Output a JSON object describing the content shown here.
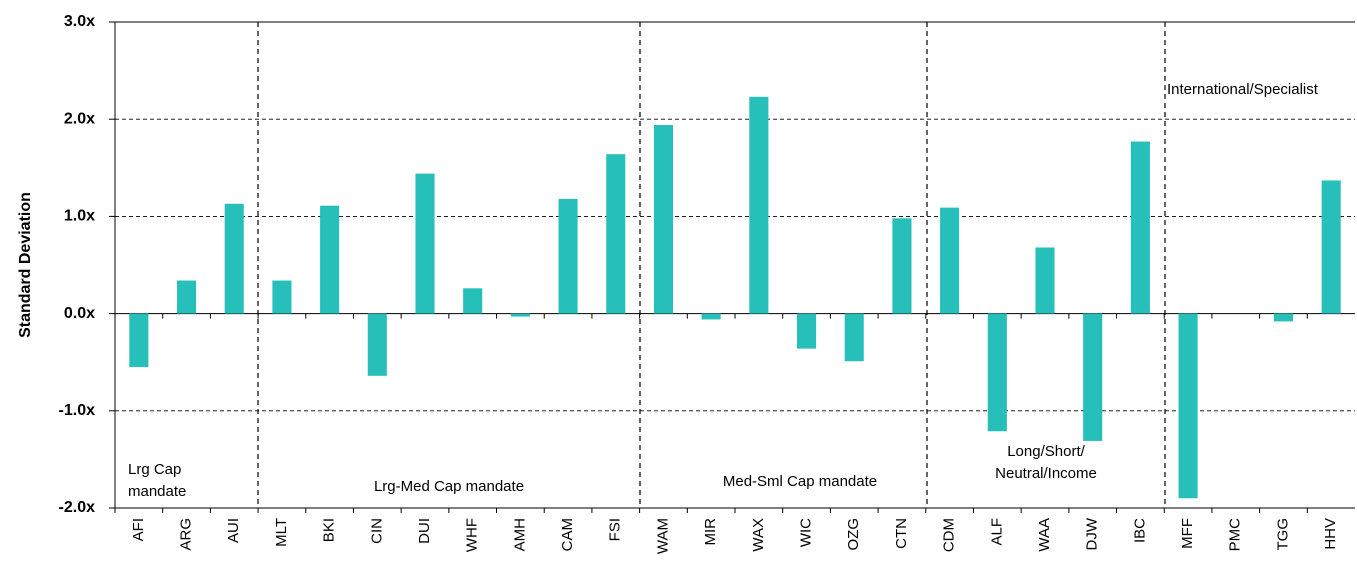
{
  "chart_data": {
    "type": "bar",
    "y_label": "Standard Deviation",
    "categories": [
      "AFI",
      "ARG",
      "AUI",
      "MLT",
      "BKI",
      "CIN",
      "DUI",
      "WHF",
      "AMH",
      "CAM",
      "FSI",
      "WAM",
      "MIR",
      "WAX",
      "WIC",
      "OZG",
      "CTN",
      "CDM",
      "ALF",
      "WAA",
      "DJW",
      "IBC",
      "MFF",
      "PMC",
      "TGG",
      "HHV"
    ],
    "values": [
      -0.55,
      0.34,
      1.13,
      0.34,
      1.11,
      -0.64,
      1.44,
      0.26,
      -0.03,
      1.18,
      1.64,
      1.94,
      -0.06,
      2.23,
      -0.36,
      -0.49,
      0.98,
      1.09,
      -1.21,
      0.68,
      -1.31,
      1.77,
      -1.9,
      0,
      -0.08,
      1.37
    ],
    "color": "#26bfb9",
    "ylim": [
      -2,
      3
    ],
    "yticks": [
      {
        "value": -2,
        "label": "-2.0x"
      },
      {
        "value": -1,
        "label": "-1.0x"
      },
      {
        "value": 0,
        "label": "0.0x"
      },
      {
        "value": 1,
        "label": "1.0x"
      },
      {
        "value": 2,
        "label": "2.0x"
      },
      {
        "value": 3,
        "label": "3.0x"
      }
    ],
    "grid": true,
    "annotations": [
      [
        "Lrg Cap",
        "mandate"
      ],
      [
        "Lrg-Med Cap mandate"
      ],
      [
        "Med-Sml Cap mandate"
      ],
      [
        "Long/Short/",
        "Neutral/Income"
      ],
      [
        "International/Specialist"
      ]
    ]
  }
}
